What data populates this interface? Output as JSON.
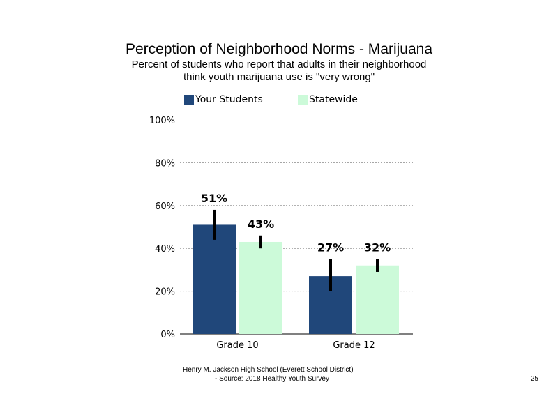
{
  "chart_data": {
    "type": "bar",
    "title": "Perception of Neighborhood Norms - Marijuana",
    "subtitle_lines": [
      "Percent of students who report that adults in their neighborhood",
      "think youth marijuana use is \"very wrong\""
    ],
    "categories": [
      "Grade 10",
      "Grade 12"
    ],
    "series": [
      {
        "name": "Your Students",
        "values": [
          51,
          27
        ],
        "labels": [
          "51%",
          "27%"
        ],
        "error_low": [
          44,
          20
        ],
        "error_high": [
          58,
          35
        ],
        "color": "#20477A"
      },
      {
        "name": "Statewide",
        "values": [
          43,
          32
        ],
        "labels": [
          "43%",
          "32%"
        ],
        "error_low": [
          40,
          29
        ],
        "error_high": [
          46,
          35
        ],
        "color": "#CCFAD9"
      }
    ],
    "ylim": [
      0,
      100
    ],
    "yticks": [
      0,
      20,
      40,
      60,
      80,
      100
    ],
    "ytick_labels": [
      "0%",
      "20%",
      "40%",
      "60%",
      "80%",
      "100%"
    ],
    "grid": true,
    "legend_position": "top"
  },
  "footer": {
    "line1": "Henry M. Jackson High School (Everett School District)",
    "line2": "- Source: 2018 Healthy Youth Survey"
  },
  "page_number": "25"
}
